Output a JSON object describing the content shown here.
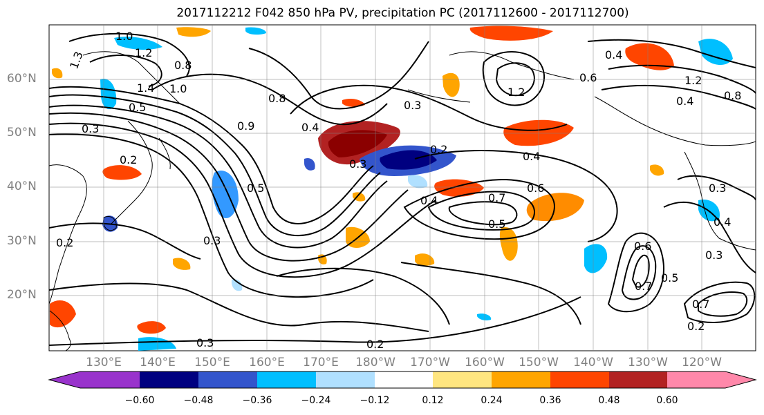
{
  "title": "2017112212 F042 850 hPa PV, precipitation PC (2017112600 - 2017112700)",
  "lat_labels": [
    "60°N",
    "50°N",
    "40°N",
    "30°N",
    "20°N"
  ],
  "lon_labels": [
    "130°E",
    "140°E",
    "150°E",
    "160°E",
    "170°E",
    "180°W",
    "170°W",
    "160°W",
    "150°W",
    "140°W",
    "130°W",
    "120°W"
  ],
  "colorbar": {
    "ticks": [
      "−0.60",
      "−0.48",
      "−0.36",
      "−0.24",
      "−0.12",
      "0.12",
      "0.24",
      "0.36",
      "0.48",
      "0.60"
    ],
    "colors": [
      "#9933cc",
      "#000080",
      "#3355cc",
      "#00bfff",
      "#b0e0ff",
      "#ffffff",
      "#ffe680",
      "#ffa500",
      "#ff4500",
      "#b22222",
      "#ff88aa"
    ]
  },
  "contour_labels": [
    "1.0",
    "1.2",
    "1.3",
    "1.4",
    "1.0",
    "0.8",
    "0.5",
    "0.3",
    "0.2",
    "0.9",
    "0.8",
    "0.3",
    "0.4",
    "0.7",
    "0.6",
    "0.5",
    "0.4",
    "0.2",
    "0.3",
    "0.4",
    "0.3",
    "0.7",
    "0.2",
    "0.3",
    "0.2",
    "0.6",
    "0.5",
    "0.7",
    "0.3",
    "1.2",
    "0.4",
    "0.8",
    "0.2",
    "0.3",
    "1.2",
    "0.6",
    "0.4",
    "0.5",
    "0.4"
  ],
  "regions": {
    "land": "coastlines",
    "pc_positive_color": "#ffa500",
    "pc_negative_color": "#00bfff"
  }
}
